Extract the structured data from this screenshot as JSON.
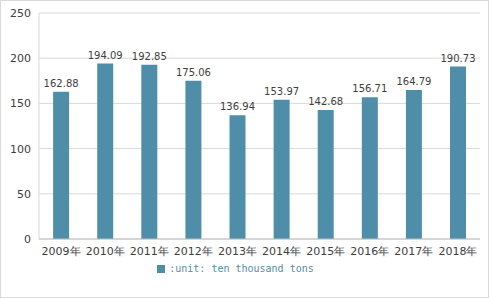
{
  "chart_data": {
    "type": "bar",
    "categories": [
      "2009年",
      "2010年",
      "2011年",
      "2012年",
      "2013年",
      "2014年",
      "2015年",
      "2016年",
      "2017年",
      "2018年"
    ],
    "series": [
      {
        "name": ":unit: ten thousand tons",
        "color": "#4f8ea8",
        "values": [
          162.88,
          194.09,
          192.85,
          175.06,
          136.94,
          153.97,
          142.68,
          156.71,
          164.79,
          190.73
        ]
      }
    ],
    "ylim": [
      0,
      250
    ],
    "yticks": [
      0,
      50,
      100,
      150,
      200,
      250
    ],
    "grid": true,
    "data_labels": true,
    "legend": "bottom"
  }
}
